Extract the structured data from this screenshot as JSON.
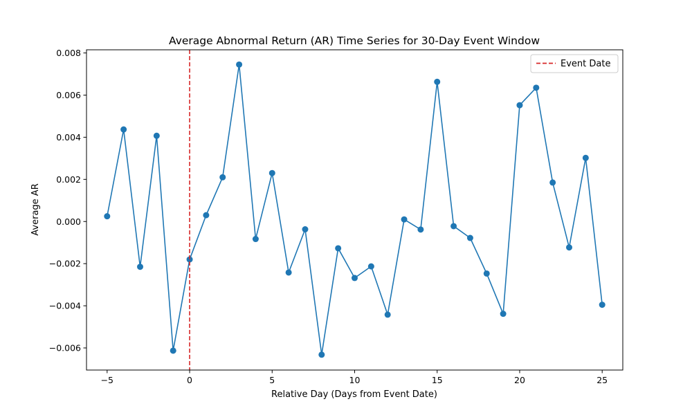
{
  "chart_data": {
    "type": "line",
    "title": "Average Abnormal Return (AR) Time Series for 30-Day Event Window",
    "xlabel": "Relative Day (Days from Event Date)",
    "ylabel": "Average AR",
    "xlim": [
      -6.25,
      26.25
    ],
    "ylim": [
      -0.00705,
      0.00815
    ],
    "x_ticks": [
      -5,
      0,
      5,
      10,
      15,
      20,
      25
    ],
    "x_tick_labels": [
      "−5",
      "0",
      "5",
      "10",
      "15",
      "20",
      "25"
    ],
    "y_ticks": [
      -0.006,
      -0.004,
      -0.002,
      0.0,
      0.002,
      0.004,
      0.006,
      0.008
    ],
    "y_tick_labels": [
      "−0.006",
      "−0.004",
      "−0.002",
      "0.000",
      "0.002",
      "0.004",
      "0.006",
      "0.008"
    ],
    "grid": false,
    "legend_position": "top-right",
    "series": [
      {
        "name": "",
        "color": "#1f77b4",
        "marker": "circle",
        "x": [
          -5,
          -4,
          -3,
          -2,
          -1,
          0,
          1,
          2,
          3,
          4,
          5,
          6,
          7,
          8,
          9,
          10,
          11,
          12,
          13,
          14,
          15,
          16,
          17,
          18,
          19,
          20,
          21,
          22,
          23,
          24,
          25
        ],
        "y": [
          0.00025,
          0.00437,
          -0.00215,
          0.00407,
          -0.00613,
          -0.0018,
          0.0003,
          0.0021,
          0.00745,
          -0.00083,
          0.0023,
          -0.00242,
          -0.00037,
          -0.00632,
          -0.00127,
          -0.00268,
          -0.00213,
          -0.00442,
          0.0001,
          -0.00038,
          0.00663,
          -0.00022,
          -0.00078,
          -0.00247,
          -0.00438,
          0.00552,
          0.00635,
          0.00185,
          -0.00123,
          0.00302,
          -0.00395
        ]
      }
    ],
    "event_line": {
      "x": 0,
      "label": "Event Date",
      "color": "#d62728",
      "style": "dashed"
    }
  }
}
